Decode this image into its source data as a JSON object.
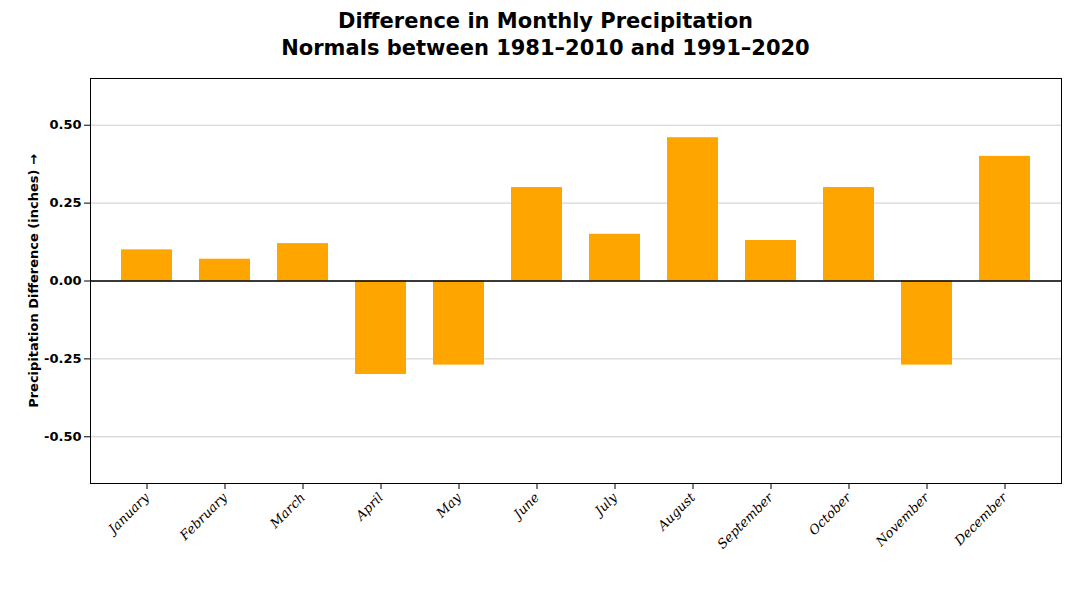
{
  "chart_data": {
    "type": "bar",
    "title": "Difference in Monthly Precipitation",
    "subtitle": "Normals between 1981–2010 and 1991–2020",
    "ylabel": "Precipitation Difference (inches)",
    "categories": [
      "January",
      "February",
      "March",
      "April",
      "May",
      "June",
      "July",
      "August",
      "September",
      "October",
      "November",
      "December"
    ],
    "values": [
      0.1,
      0.07,
      0.12,
      -0.3,
      -0.27,
      0.3,
      0.15,
      0.46,
      0.13,
      0.3,
      -0.27,
      0.4
    ],
    "color": "#FFA500",
    "ylim": [
      -0.65,
      0.65
    ],
    "yticks": [
      {
        "value": -0.5,
        "label": "-0.50"
      },
      {
        "value": -0.25,
        "label": "-0.25"
      },
      {
        "value": 0.0,
        "label": "0.00"
      },
      {
        "value": 0.25,
        "label": "0.25"
      },
      {
        "value": 0.5,
        "label": "0.50"
      }
    ],
    "grid": true
  }
}
